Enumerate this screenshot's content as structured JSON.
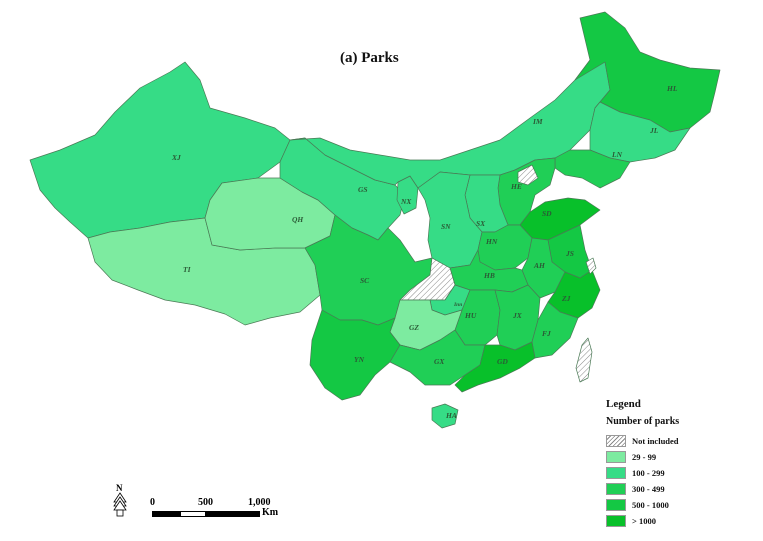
{
  "title": "(a) Parks",
  "colors": {
    "c1": "#7deba0",
    "c2": "#36dc86",
    "c3": "#20cf56",
    "c4": "#14c844",
    "c5": "#08c02a",
    "border": "#4a7a55",
    "hatch": "#888888"
  },
  "provinces": [
    {
      "code": "XJ",
      "class": "100 - 299"
    },
    {
      "code": "TI",
      "class": "29 - 99"
    },
    {
      "code": "QH",
      "class": "29 - 99"
    },
    {
      "code": "GS",
      "class": "100 - 299"
    },
    {
      "code": "NX",
      "class": "100 - 299"
    },
    {
      "code": "IM",
      "class": "100 - 299"
    },
    {
      "code": "HL",
      "class": "500 - 1000"
    },
    {
      "code": "JL",
      "class": "100 - 299"
    },
    {
      "code": "LN",
      "class": "300 - 499"
    },
    {
      "code": "HE",
      "class": "300 - 499"
    },
    {
      "code": "SX",
      "class": "100 - 299"
    },
    {
      "code": "SN",
      "class": "100 - 299"
    },
    {
      "code": "SD",
      "class": "> 1000"
    },
    {
      "code": "HN",
      "class": "300 - 499"
    },
    {
      "code": "JS",
      "class": "500 - 1000"
    },
    {
      "code": "AH",
      "class": "300 - 499"
    },
    {
      "code": "HB",
      "class": "300 - 499"
    },
    {
      "code": "SC",
      "class": "300 - 499"
    },
    {
      "code": "Inn",
      "class": "100 - 299"
    },
    {
      "code": "ZJ",
      "class": "> 1000"
    },
    {
      "code": "HU",
      "class": "300 - 499"
    },
    {
      "code": "JX",
      "class": "300 - 499"
    },
    {
      "code": "FJ",
      "class": "300 - 499"
    },
    {
      "code": "GZ",
      "class": "29 - 99"
    },
    {
      "code": "YN",
      "class": "500 - 1000"
    },
    {
      "code": "GX",
      "class": "300 - 499"
    },
    {
      "code": "GD",
      "class": "> 1000"
    },
    {
      "code": "HA",
      "class": "100 - 299"
    }
  ],
  "legend": {
    "title": "Legend",
    "subtitle": "Number of parks",
    "items": [
      {
        "label": "Not included",
        "color": "hatch"
      },
      {
        "label": "29 - 99",
        "color": "#7deba0"
      },
      {
        "label": "100 - 299",
        "color": "#36dc86"
      },
      {
        "label": "300 - 499",
        "color": "#20cf56"
      },
      {
        "label": "500 - 1000",
        "color": "#14c844"
      },
      {
        "label": "> 1000",
        "color": "#08c02a"
      }
    ]
  },
  "scale": {
    "t0": "0",
    "t1": "500",
    "t2": "1,000",
    "unit": "Km"
  },
  "north": "N"
}
